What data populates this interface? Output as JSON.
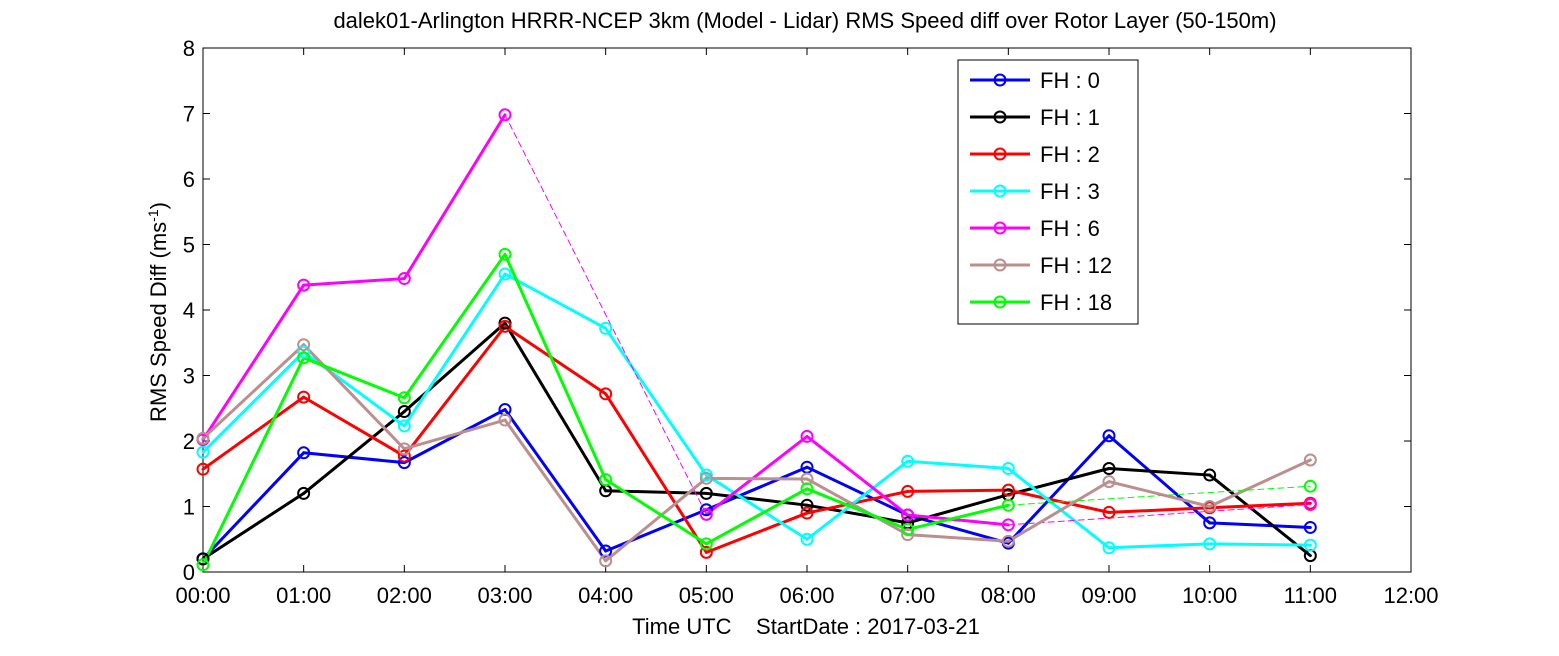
{
  "chart_data": {
    "type": "line",
    "title": "dalek01-Arlington HRRR-NCEP 3km (Model - Lidar) RMS Speed diff over Rotor Layer (50-150m)",
    "xlabel": "Time UTC    StartDate : 2017-03-21",
    "ylabel": "RMS Speed Diff (ms",
    "ylabel_sup": "-1",
    "ylabel_close": ")",
    "xlim": [
      0,
      12
    ],
    "ylim": [
      0,
      8
    ],
    "x_ticks": [
      0,
      1,
      2,
      3,
      4,
      5,
      6,
      7,
      8,
      9,
      10,
      11,
      12
    ],
    "x_tick_labels": [
      "00:00",
      "01:00",
      "02:00",
      "03:00",
      "04:00",
      "05:00",
      "06:00",
      "07:00",
      "08:00",
      "09:00",
      "10:00",
      "11:00",
      "12:00"
    ],
    "y_ticks": [
      0,
      1,
      2,
      3,
      4,
      5,
      6,
      7,
      8
    ],
    "y_tick_labels": [
      "0",
      "1",
      "2",
      "3",
      "4",
      "5",
      "6",
      "7",
      "8"
    ],
    "grid": false,
    "legend_position": "top-right",
    "series": [
      {
        "name": "FH : 0",
        "color": "#0000ff",
        "points": [
          [
            0,
            0.2
          ],
          [
            1,
            1.82
          ],
          [
            2,
            1.67
          ],
          [
            3,
            2.48
          ],
          [
            4,
            0.32
          ],
          [
            5,
            0.95
          ],
          [
            6,
            1.6
          ],
          [
            7,
            0.87
          ],
          [
            8,
            0.44
          ],
          [
            9,
            2.08
          ],
          [
            10,
            0.75
          ],
          [
            11,
            0.68
          ]
        ]
      },
      {
        "name": "FH : 1",
        "color": "#000000",
        "points": [
          [
            0,
            0.2
          ],
          [
            1,
            1.2
          ],
          [
            2,
            2.45
          ],
          [
            3,
            3.8
          ],
          [
            4,
            1.24
          ],
          [
            5,
            1.2
          ],
          [
            6,
            1.02
          ],
          [
            7,
            0.75
          ],
          [
            8,
            1.18
          ],
          [
            9,
            1.58
          ],
          [
            10,
            1.48
          ],
          [
            11,
            0.25
          ]
        ]
      },
      {
        "name": "FH : 2",
        "color": "#ff0000",
        "points": [
          [
            0,
            1.57
          ],
          [
            1,
            2.67
          ],
          [
            2,
            1.77
          ],
          [
            3,
            3.75
          ],
          [
            4,
            2.72
          ],
          [
            5,
            0.3
          ],
          [
            6,
            0.9
          ],
          [
            7,
            1.23
          ],
          [
            8,
            1.25
          ],
          [
            9,
            0.91
          ],
          [
            10,
            0.98
          ],
          [
            11,
            1.05
          ]
        ]
      },
      {
        "name": "FH : 3",
        "color": "#00ffff",
        "points": [
          [
            0,
            1.83
          ],
          [
            1,
            3.36
          ],
          [
            2,
            2.23
          ],
          [
            3,
            4.55
          ],
          [
            4,
            3.72
          ],
          [
            5,
            1.48
          ],
          [
            6,
            0.5
          ],
          [
            7,
            1.69
          ],
          [
            8,
            1.58
          ],
          [
            9,
            0.37
          ],
          [
            10,
            0.43
          ],
          [
            11,
            0.41
          ]
        ]
      },
      {
        "name": "FH : 6",
        "color": "#ff00ff",
        "points": [
          [
            0,
            2.02
          ],
          [
            1,
            4.38
          ],
          [
            2,
            4.48
          ],
          [
            3,
            6.98
          ],
          [
            5,
            0.88
          ],
          [
            6,
            2.07
          ],
          [
            7,
            0.87
          ],
          [
            8,
            0.72
          ],
          [
            11,
            1.03
          ]
        ]
      },
      {
        "name": "FH : 12",
        "color": "#bc8f8f",
        "points": [
          [
            0,
            2.04
          ],
          [
            1,
            3.47
          ],
          [
            2,
            1.88
          ],
          [
            3,
            2.32
          ],
          [
            4,
            0.17
          ],
          [
            5,
            1.43
          ],
          [
            6,
            1.42
          ],
          [
            7,
            0.57
          ],
          [
            8,
            0.47
          ],
          [
            9,
            1.38
          ],
          [
            10,
            1.0
          ],
          [
            11,
            1.71
          ]
        ]
      },
      {
        "name": "FH : 18",
        "color": "#00ff00",
        "points": [
          [
            0,
            0.11
          ],
          [
            1,
            3.27
          ],
          [
            2,
            2.66
          ],
          [
            3,
            4.85
          ],
          [
            4,
            1.41
          ],
          [
            5,
            0.43
          ],
          [
            6,
            1.27
          ],
          [
            7,
            0.65
          ],
          [
            8,
            1.02
          ],
          [
            11,
            1.31
          ]
        ]
      }
    ]
  }
}
